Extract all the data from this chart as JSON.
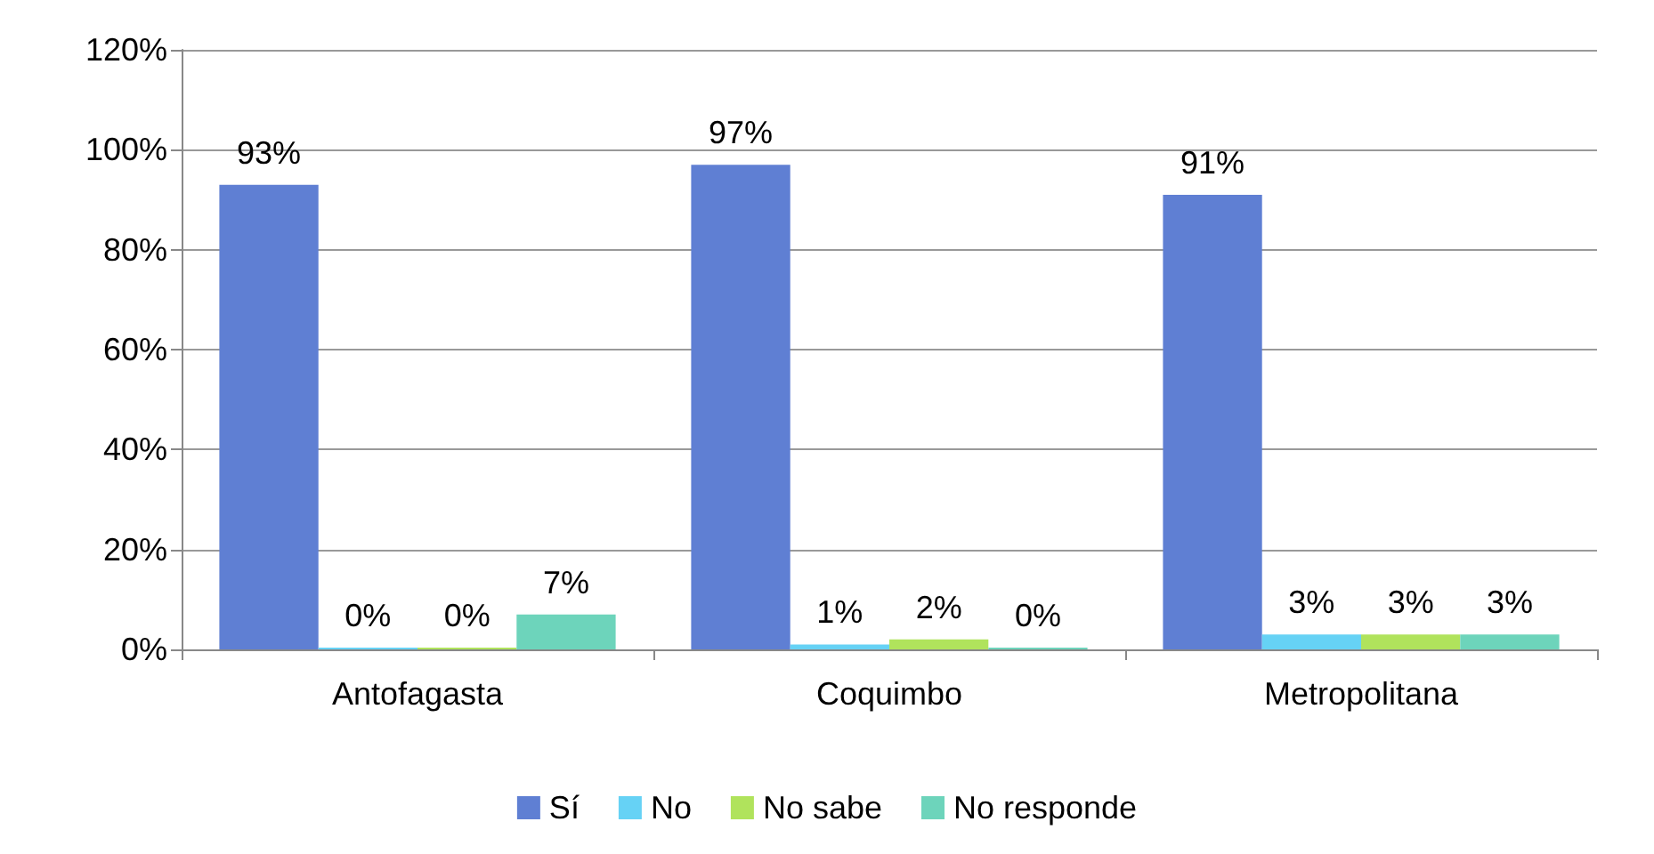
{
  "chart_data": {
    "type": "bar",
    "categories": [
      "Antofagasta",
      "Coquimbo",
      "Metropolitana"
    ],
    "series": [
      {
        "name": "Sí",
        "color": "#5f7fd3",
        "values": [
          93,
          97,
          91
        ],
        "value_labels": [
          "93%",
          "97%",
          "91%"
        ]
      },
      {
        "name": "No",
        "color": "#66d2f5",
        "values": [
          0,
          1,
          3
        ],
        "value_labels": [
          "0%",
          "1%",
          "3%"
        ]
      },
      {
        "name": "No sabe",
        "color": "#b0e35c",
        "values": [
          0,
          2,
          3
        ],
        "value_labels": [
          "0%",
          "2%",
          "3%"
        ]
      },
      {
        "name": "No responde",
        "color": "#6dd4bb",
        "values": [
          7,
          0,
          3
        ],
        "value_labels": [
          "7%",
          "0%",
          "3%"
        ]
      }
    ],
    "ylim": [
      0,
      120
    ],
    "yticks": [
      {
        "value": 0,
        "label": "0%"
      },
      {
        "value": 20,
        "label": "20%"
      },
      {
        "value": 40,
        "label": "40%"
      },
      {
        "value": 60,
        "label": "60%"
      },
      {
        "value": 80,
        "label": "80%"
      },
      {
        "value": 100,
        "label": "100%"
      },
      {
        "value": 120,
        "label": "120%"
      }
    ],
    "grid": "y",
    "legend": "bottom"
  }
}
